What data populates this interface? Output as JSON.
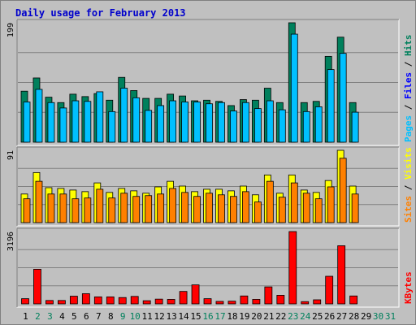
{
  "colors": {
    "background": "#c0c0c0",
    "panel": "#c0c0c0",
    "title": "#0000cc",
    "hits": "#00805c",
    "files": "#00c0ff",
    "visits": "#ffff00",
    "sites": "#ff8000",
    "kbytes": "#ff0000",
    "weekend_label": "#00805c",
    "weekday_label": "#000000"
  },
  "chart_data": {
    "title": "Daily usage for February 2013",
    "type": "bar",
    "categories": [
      "1",
      "2",
      "3",
      "4",
      "5",
      "6",
      "7",
      "8",
      "9",
      "10",
      "11",
      "12",
      "13",
      "14",
      "15",
      "16",
      "17",
      "18",
      "19",
      "20",
      "21",
      "22",
      "23",
      "24",
      "25",
      "26",
      "27",
      "28",
      "29",
      "30",
      "31"
    ],
    "weekend_days": [
      2,
      3,
      9,
      10,
      16,
      17,
      23,
      24,
      30,
      31
    ],
    "panels": [
      {
        "name": "hits-files",
        "ymax_label": "199",
        "ymax": 199,
        "side_label": [
          {
            "text": "Pages",
            "color": "#00c0ff"
          },
          {
            "text": " / ",
            "color": "#000000"
          },
          {
            "text": "Files",
            "color": "#0000ff"
          },
          {
            "text": " / ",
            "color": "#000000"
          },
          {
            "text": "Hits",
            "color": "#00805c"
          }
        ],
        "series": [
          {
            "name": "Hits",
            "color": "#00805c",
            "values": [
              85,
              107,
              75,
              66,
              80,
              76,
              81,
              70,
              108,
              86,
              73,
              73,
              80,
              77,
              69,
              70,
              68,
              61,
              71,
              70,
              90,
              66,
              199,
              66,
              68,
              143,
              175,
              66,
              0,
              0,
              0
            ]
          },
          {
            "name": "Files",
            "color": "#00c0ff",
            "values": [
              67,
              88,
              66,
              57,
              69,
              68,
              84,
              51,
              90,
              74,
              53,
              61,
              69,
              67,
              67,
              64,
              66,
              52,
              66,
              56,
              69,
              54,
              180,
              51,
              59,
              121,
              148,
              50,
              0,
              0,
              0
            ]
          }
        ]
      },
      {
        "name": "visits-sites",
        "ymax_label": "91",
        "ymax": 91,
        "side_label": [
          {
            "text": "Sites",
            "color": "#ff8000"
          },
          {
            "text": " / ",
            "color": "#000000"
          },
          {
            "text": "Visits",
            "color": "#ffff00"
          }
        ],
        "series": [
          {
            "name": "Visits",
            "color": "#ffff00",
            "values": [
              36,
              63,
              44,
              43,
              41,
              39,
              50,
              38,
              43,
              40,
              37,
              45,
              52,
              46,
              39,
              42,
              42,
              40,
              46,
              35,
              60,
              37,
              60,
              41,
              38,
              53,
              91,
              46,
              0,
              0,
              0
            ]
          },
          {
            "name": "Sites",
            "color": "#ff8000",
            "values": [
              30,
              52,
              36,
              36,
              30,
              31,
              42,
              31,
              37,
              33,
              34,
              36,
              43,
              38,
              33,
              37,
              35,
              33,
              39,
              26,
              52,
              32,
              50,
              37,
              30,
              45,
              81,
              36,
              0,
              0,
              0
            ]
          }
        ]
      },
      {
        "name": "kbytes",
        "ymax_label": "3196",
        "ymax": 3196,
        "side_label": [
          {
            "text": "KBytes",
            "color": "#ff0000"
          }
        ],
        "series": [
          {
            "name": "KBytes",
            "color": "#ff0000",
            "values": [
              230,
              1530,
              150,
              150,
              340,
              450,
              310,
              310,
              280,
              330,
              140,
              210,
              200,
              550,
              840,
              230,
              110,
              120,
              350,
              200,
              750,
              380,
              3196,
              100,
              180,
              1220,
              2570,
              350,
              0,
              0,
              0
            ]
          }
        ]
      }
    ]
  }
}
